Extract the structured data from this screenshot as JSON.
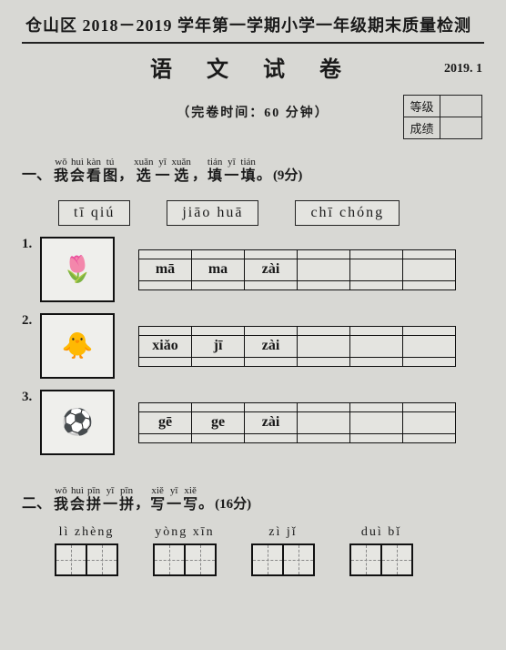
{
  "header": {
    "title": "仓山区 2018－2019 学年第一学期小学一年级期末质量检测",
    "main_title": "语 文 试 卷",
    "date": "2019. 1",
    "time": "（完卷时间：60 分钟）",
    "grade_labels": {
      "level": "等级",
      "score": "成绩"
    }
  },
  "q1": {
    "number": "一、",
    "ruby": [
      {
        "py": "wǒ",
        "hz": "我"
      },
      {
        "py": "huì",
        "hz": "会"
      },
      {
        "py": "kàn",
        "hz": "看"
      },
      {
        "py": "tú",
        "hz": "图"
      }
    ],
    "comma1": "，",
    "ruby2": [
      {
        "py": "xuǎn",
        "hz": "选"
      },
      {
        "py": "yī",
        "hz": "一"
      },
      {
        "py": "xuǎn",
        "hz": "选"
      }
    ],
    "comma2": "，",
    "ruby3": [
      {
        "py": "tián",
        "hz": "填"
      },
      {
        "py": "yī",
        "hz": "一"
      },
      {
        "py": "tián",
        "hz": "填"
      }
    ],
    "period": "。",
    "score": "(9分)",
    "word_options": [
      "tī  qiú",
      "jiāo  huā",
      "chī  chóng"
    ],
    "items": [
      {
        "num": "1.",
        "emoji": "🌷",
        "cells": [
          "mā",
          "ma",
          "zài",
          "",
          "",
          ""
        ]
      },
      {
        "num": "2.",
        "emoji": "🐥",
        "cells": [
          "xiǎo",
          "jī",
          "zài",
          "",
          "",
          ""
        ]
      },
      {
        "num": "3.",
        "emoji": "⚽",
        "cells": [
          "gē",
          "ge",
          "zài",
          "",
          "",
          ""
        ]
      }
    ]
  },
  "q2": {
    "number": "二、",
    "ruby": [
      {
        "py": "wǒ",
        "hz": "我"
      },
      {
        "py": "huì",
        "hz": "会"
      },
      {
        "py": "pīn",
        "hz": "拼"
      },
      {
        "py": "yī",
        "hz": "一"
      },
      {
        "py": "pīn",
        "hz": "拼"
      }
    ],
    "comma": "，",
    "ruby2": [
      {
        "py": "xiě",
        "hz": "写"
      },
      {
        "py": "yī",
        "hz": "一"
      },
      {
        "py": "xiě",
        "hz": "写"
      }
    ],
    "period": "。",
    "score": "(16分)",
    "words": [
      "lì  zhèng",
      "yòng  xīn",
      "zì  jǐ",
      "duì  bǐ"
    ]
  }
}
